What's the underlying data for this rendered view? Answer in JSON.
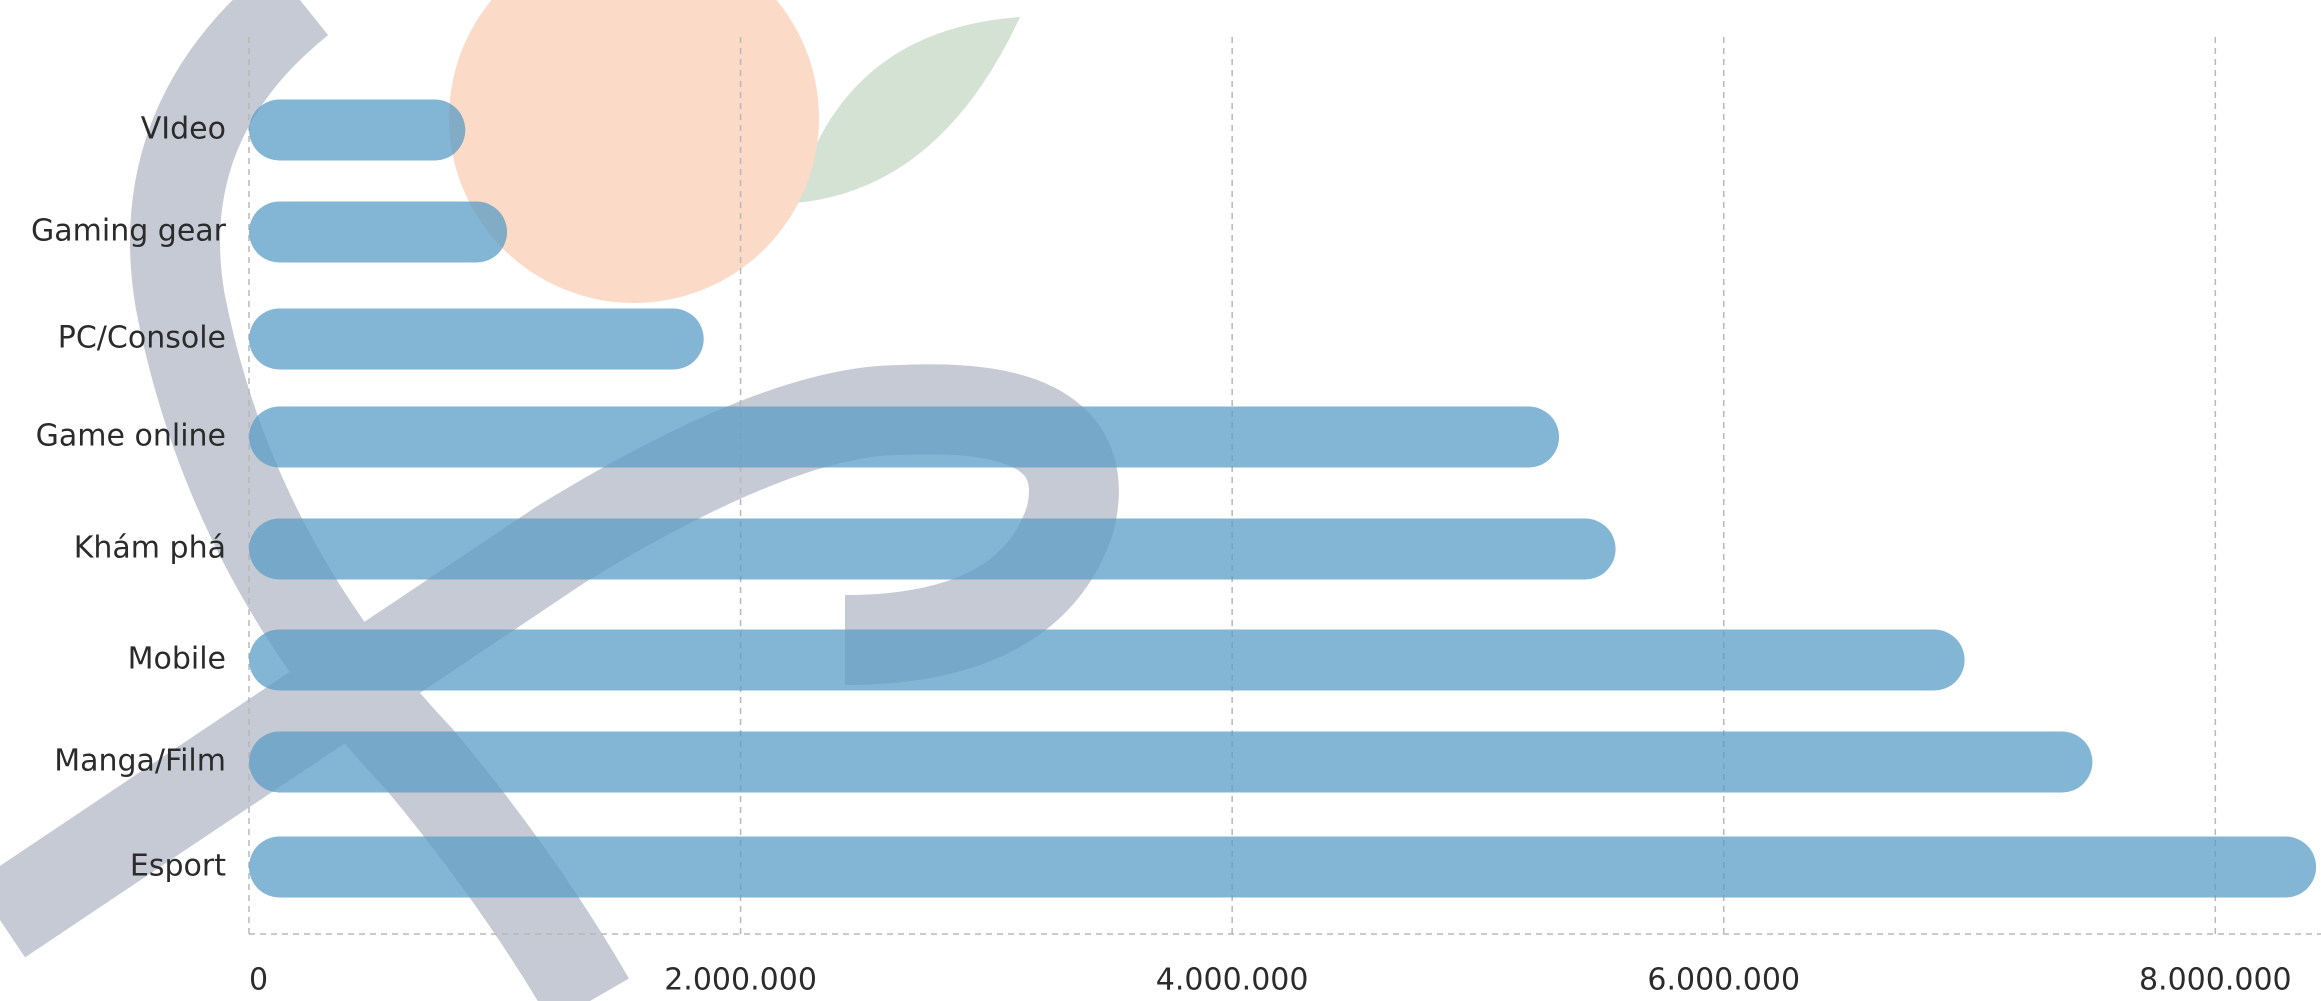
{
  "chart_data": {
    "type": "hbar",
    "categories": [
      "VIdeo",
      "Gaming gear",
      "PC/Console",
      "Game online",
      "Khám phá",
      "Mobile",
      "Manga/Film",
      "Esport"
    ],
    "values": [
      880000,
      1050000,
      1850000,
      5330000,
      5560000,
      6980000,
      7500000,
      8410000
    ],
    "color": "#5a9cc6",
    "xlim": [
      0,
      8430000
    ],
    "xticks": [
      0,
      {
        "value": 2000000,
        "label": "2.000.000"
      },
      {
        "value": 4000000,
        "label": "4.000.000"
      },
      {
        "value": 6000000,
        "label": "6.000.000"
      },
      {
        "value": 8000000,
        "label": "8.000.000"
      }
    ],
    "grid": true
  }
}
